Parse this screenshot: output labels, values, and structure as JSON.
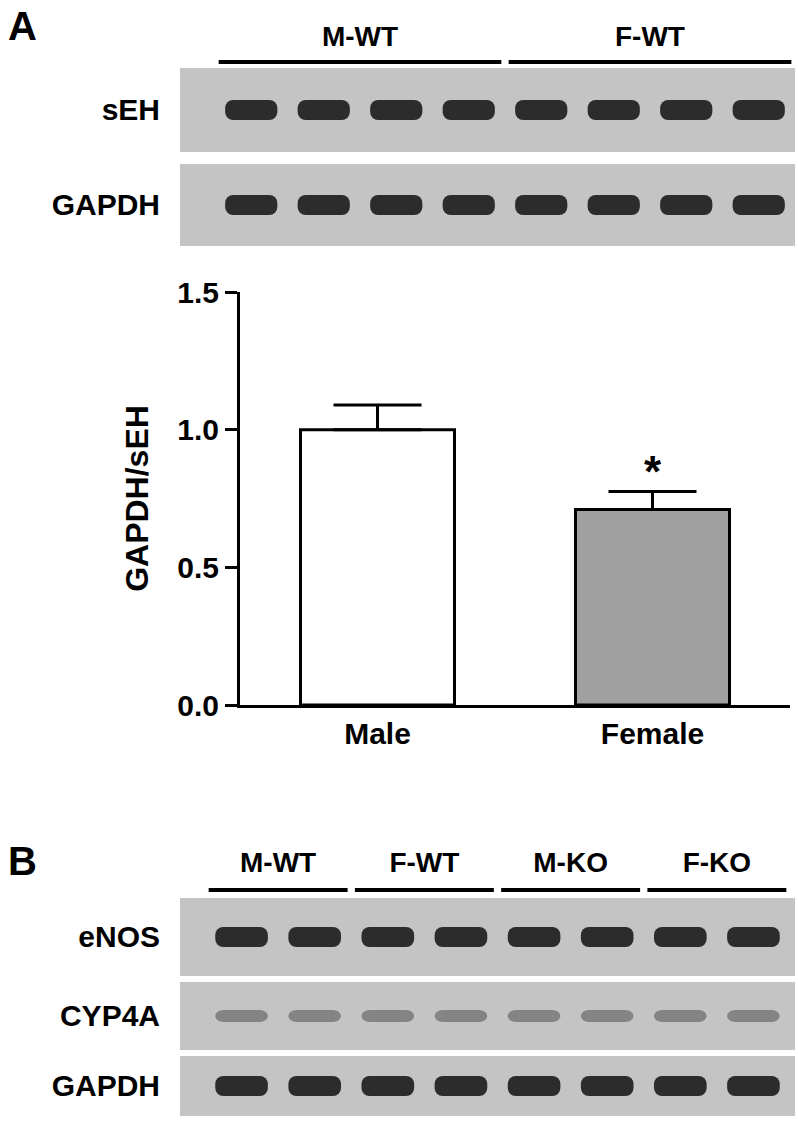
{
  "panel_a": {
    "label": "A",
    "groups": [
      "M-WT",
      "F-WT"
    ],
    "lanes_per_group": 4,
    "rows": [
      "sEH",
      "GAPDH"
    ]
  },
  "chart_data": {
    "type": "bar",
    "categories": [
      "Male",
      "Female"
    ],
    "values": [
      1.0,
      0.71
    ],
    "errors": [
      0.09,
      0.065
    ],
    "colors": [
      "#ffffff",
      "#a0a0a0"
    ],
    "ylabel": "GAPDH/sEH",
    "ylim": [
      0,
      1.5
    ],
    "yticks": [
      {
        "value": 0,
        "label": "0.0"
      },
      {
        "value": 0.5,
        "label": "0.5"
      },
      {
        "value": 1,
        "label": "1.0"
      },
      {
        "value": 1.5,
        "label": "1.5"
      }
    ],
    "grid": false,
    "annotations": [
      {
        "category": "Female",
        "text": "*"
      }
    ]
  },
  "panel_b": {
    "label": "B",
    "groups": [
      "M-WT",
      "F-WT",
      "M-KO",
      "F-KO"
    ],
    "lanes_per_group": 2,
    "rows": [
      "eNOS",
      "CYP4A",
      "GAPDH"
    ]
  }
}
